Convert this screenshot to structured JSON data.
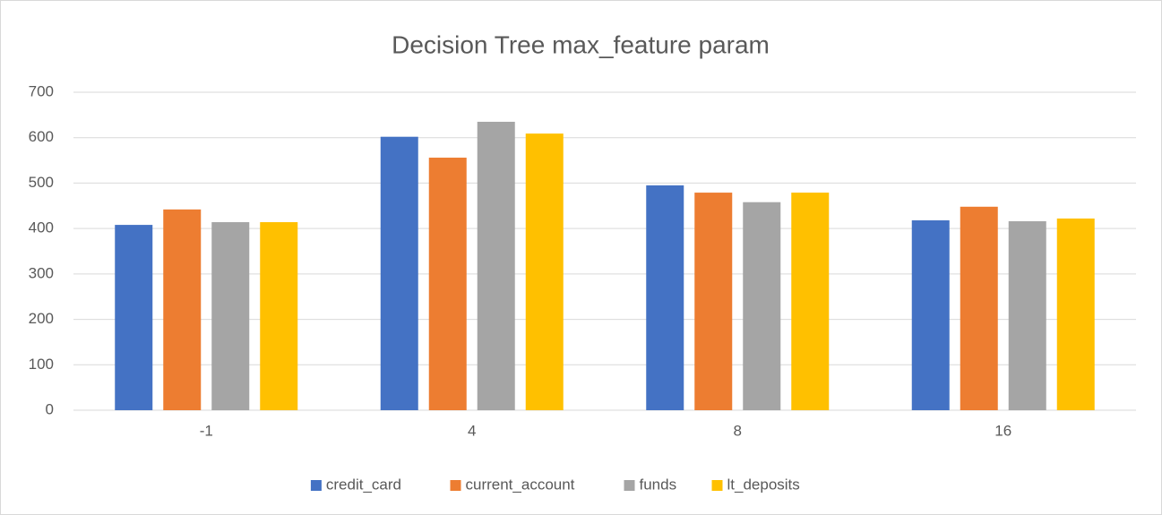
{
  "chart_data": {
    "type": "bar",
    "title": "Decision Tree max_feature param",
    "categories": [
      "-1",
      "4",
      "8",
      "16"
    ],
    "series": [
      {
        "name": "credit_card",
        "color": "#4472c4",
        "values": [
          408,
          602,
          495,
          418
        ]
      },
      {
        "name": "current_account",
        "color": "#ed7d31",
        "values": [
          442,
          556,
          479,
          448
        ]
      },
      {
        "name": "funds",
        "color": "#a5a5a5",
        "values": [
          414,
          635,
          458,
          416
        ]
      },
      {
        "name": "lt_deposits",
        "color": "#ffc000",
        "values": [
          414,
          609,
          479,
          422
        ]
      }
    ],
    "ylim": [
      0,
      700
    ],
    "yticks": [
      0,
      100,
      200,
      300,
      400,
      500,
      600,
      700
    ],
    "grid": true,
    "legend": "bottom"
  }
}
